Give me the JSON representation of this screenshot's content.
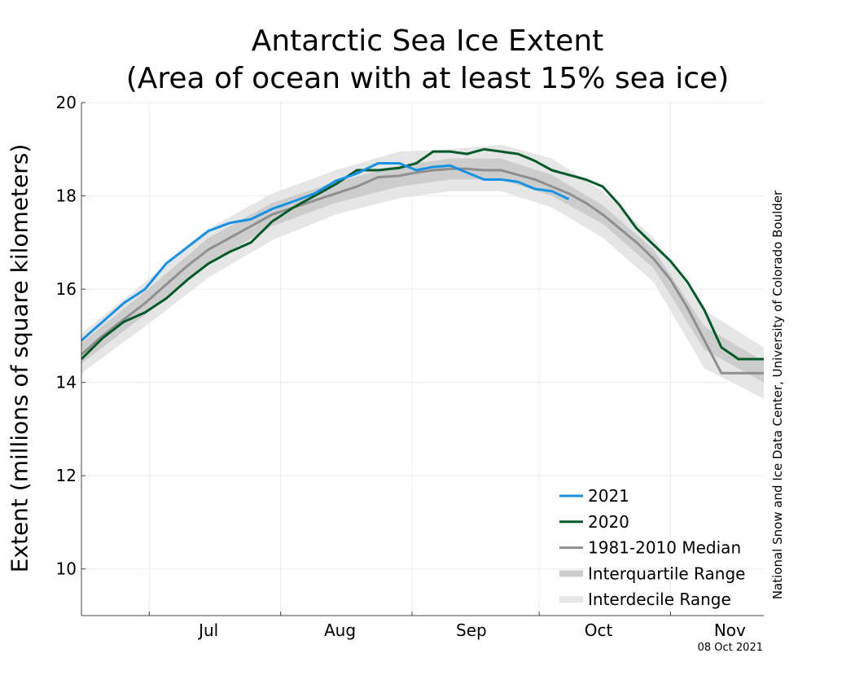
{
  "chart_data": {
    "type": "line",
    "title": "Antarctic Sea Ice Extent",
    "subtitle": "(Area of ocean with at least 15% sea ice)",
    "xlabel": "",
    "ylabel": "Extent (millions of square kilometers)",
    "ylim": [
      9,
      20
    ],
    "yticks": [
      10,
      12,
      14,
      16,
      18,
      20
    ],
    "xlim": [
      "2021-06-15",
      "2021-11-23"
    ],
    "month_ticks": [
      {
        "label": "Jul",
        "day": "2021-07-15"
      },
      {
        "label": "Aug",
        "day": "2021-08-15"
      },
      {
        "label": "Sep",
        "day": "2021-09-15"
      },
      {
        "label": "Oct",
        "day": "2021-10-15"
      },
      {
        "label": "Nov",
        "day": "2021-11-15"
      }
    ],
    "month_boundaries": [
      "2021-07-01",
      "2021-08-01",
      "2021-09-01",
      "2021-10-01",
      "2021-11-01"
    ],
    "grid": true,
    "legend_position": "bottom-right",
    "series": [
      {
        "name": "2021",
        "color": "#1592e6",
        "x": [
          "2021-06-15",
          "2021-06-20",
          "2021-06-25",
          "2021-06-30",
          "2021-07-05",
          "2021-07-10",
          "2021-07-15",
          "2021-07-20",
          "2021-07-25",
          "2021-07-30",
          "2021-08-04",
          "2021-08-09",
          "2021-08-14",
          "2021-08-19",
          "2021-08-24",
          "2021-08-29",
          "2021-09-02",
          "2021-09-06",
          "2021-09-10",
          "2021-09-14",
          "2021-09-18",
          "2021-09-22",
          "2021-09-26",
          "2021-09-30",
          "2021-10-04",
          "2021-10-08"
        ],
        "y": [
          14.9,
          15.3,
          15.7,
          16.0,
          16.55,
          16.9,
          17.25,
          17.42,
          17.5,
          17.72,
          17.88,
          18.05,
          18.32,
          18.48,
          18.7,
          18.7,
          18.55,
          18.62,
          18.65,
          18.5,
          18.35,
          18.35,
          18.3,
          18.15,
          18.1,
          17.93
        ]
      },
      {
        "name": "2020",
        "color": "#045a28",
        "x": [
          "2021-06-15",
          "2021-06-20",
          "2021-06-25",
          "2021-06-30",
          "2021-07-05",
          "2021-07-10",
          "2021-07-15",
          "2021-07-20",
          "2021-07-25",
          "2021-07-30",
          "2021-08-04",
          "2021-08-09",
          "2021-08-14",
          "2021-08-19",
          "2021-08-24",
          "2021-08-29",
          "2021-09-02",
          "2021-09-06",
          "2021-09-10",
          "2021-09-14",
          "2021-09-18",
          "2021-09-22",
          "2021-09-26",
          "2021-09-30",
          "2021-10-04",
          "2021-10-08",
          "2021-10-12",
          "2021-10-16",
          "2021-10-20",
          "2021-10-24",
          "2021-10-28",
          "2021-11-01",
          "2021-11-05",
          "2021-11-09",
          "2021-11-13",
          "2021-11-17",
          "2021-11-21",
          "2021-11-23"
        ],
        "y": [
          14.5,
          14.95,
          15.3,
          15.5,
          15.8,
          16.2,
          16.55,
          16.8,
          17.0,
          17.45,
          17.75,
          18.0,
          18.25,
          18.55,
          18.55,
          18.6,
          18.7,
          18.95,
          18.95,
          18.9,
          19.0,
          18.95,
          18.9,
          18.75,
          18.55,
          18.45,
          18.35,
          18.2,
          17.8,
          17.3,
          16.95,
          16.6,
          16.15,
          15.55,
          14.75,
          14.5,
          14.5,
          14.5
        ]
      },
      {
        "name": "1981-2010 Median",
        "color": "#8f8f8f",
        "x": [
          "2021-06-15",
          "2021-06-20",
          "2021-06-25",
          "2021-06-30",
          "2021-07-05",
          "2021-07-10",
          "2021-07-15",
          "2021-07-20",
          "2021-07-25",
          "2021-07-30",
          "2021-08-04",
          "2021-08-09",
          "2021-08-14",
          "2021-08-19",
          "2021-08-24",
          "2021-08-29",
          "2021-09-02",
          "2021-09-06",
          "2021-09-10",
          "2021-09-14",
          "2021-09-18",
          "2021-09-22",
          "2021-09-26",
          "2021-09-30",
          "2021-10-04",
          "2021-10-08",
          "2021-10-12",
          "2021-10-16",
          "2021-10-20",
          "2021-10-24",
          "2021-10-28",
          "2021-11-01",
          "2021-11-05",
          "2021-11-09",
          "2021-11-13",
          "2021-11-17",
          "2021-11-21",
          "2021-11-23"
        ],
        "y": [
          14.6,
          15.0,
          15.35,
          15.7,
          16.1,
          16.5,
          16.85,
          17.1,
          17.35,
          17.6,
          17.75,
          17.9,
          18.05,
          18.2,
          18.4,
          18.43,
          18.5,
          18.55,
          18.58,
          18.58,
          18.55,
          18.55,
          18.45,
          18.35,
          18.2,
          18.05,
          17.85,
          17.6,
          17.3,
          17.0,
          16.65,
          16.2,
          15.6,
          14.9,
          14.2,
          14.2,
          14.2,
          14.2
        ]
      },
      {
        "name": "Interquartile Range",
        "color": "#cdcdcd",
        "x": [
          "2021-06-15",
          "2021-06-30",
          "2021-07-15",
          "2021-07-30",
          "2021-08-14",
          "2021-08-29",
          "2021-09-10",
          "2021-09-22",
          "2021-10-04",
          "2021-10-16",
          "2021-10-28",
          "2021-11-09",
          "2021-11-23"
        ],
        "low": [
          14.4,
          15.45,
          16.55,
          17.35,
          17.85,
          18.2,
          18.35,
          18.35,
          18.0,
          17.4,
          16.45,
          14.7,
          14.0
        ],
        "high": [
          14.85,
          15.95,
          17.1,
          17.85,
          18.3,
          18.65,
          18.8,
          18.8,
          18.45,
          17.8,
          16.85,
          15.2,
          14.45
        ]
      },
      {
        "name": "Interdecile Range",
        "color": "#e6e6e6",
        "x": [
          "2021-06-15",
          "2021-06-30",
          "2021-07-15",
          "2021-07-30",
          "2021-08-14",
          "2021-08-29",
          "2021-09-10",
          "2021-09-22",
          "2021-10-04",
          "2021-10-16",
          "2021-10-28",
          "2021-11-09",
          "2021-11-23"
        ],
        "low": [
          14.2,
          15.2,
          16.25,
          17.05,
          17.6,
          17.95,
          18.1,
          18.1,
          17.75,
          17.1,
          16.15,
          14.3,
          13.65
        ],
        "high": [
          15.05,
          16.15,
          17.3,
          18.05,
          18.55,
          18.95,
          19.0,
          19.1,
          18.8,
          18.1,
          17.1,
          15.55,
          14.75
        ]
      }
    ]
  },
  "credit": "National Snow and Ice Data Center, University of Colorado Boulder",
  "date_stamp": "08 Oct 2021"
}
